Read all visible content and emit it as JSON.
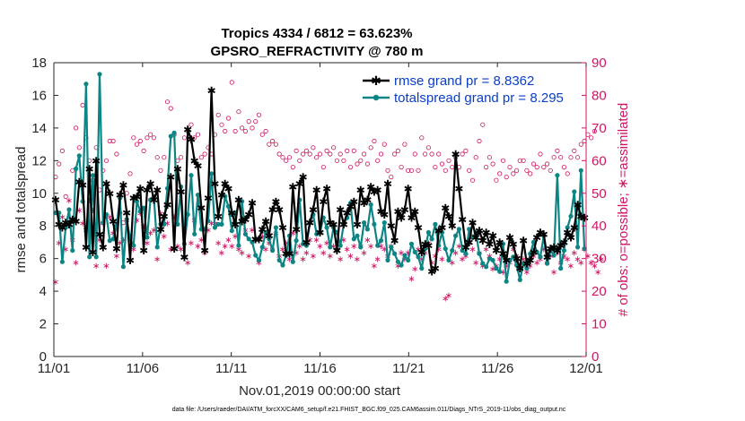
{
  "chart_data": {
    "type": "line",
    "title": "Tropics 4334 / 6812 = 63.623%",
    "subtitle": "GPSRO_REFRACTIVITY @ 780 m",
    "xlabel": "Nov.01,2019 00:00:00 start",
    "ylabel": "rmse and totalspread",
    "y2label": "# of obs: o=possible; ∗=assimilated",
    "footnote": "data file: /Users/raeder/DAI/ATM_forcXX/CAM6_setup/f.e21.FHIST_BGC.f09_025.CAM6assim.011/Diags_NTrS_2019-11/obs_diag_output.nc",
    "xlim": [
      0,
      30
    ],
    "ylim": [
      0,
      18
    ],
    "y2lim": [
      0,
      90
    ],
    "xticks": [
      0,
      5,
      10,
      15,
      20,
      25,
      30
    ],
    "xtick_labels": [
      "11/01",
      "11/06",
      "11/11",
      "11/16",
      "11/21",
      "11/26",
      "12/01"
    ],
    "yticks": [
      0,
      2,
      4,
      6,
      8,
      10,
      12,
      14,
      16,
      18
    ],
    "ytick_labels": [
      "0",
      "2",
      "4",
      "6",
      "8",
      "10",
      "12",
      "14",
      "16",
      "18"
    ],
    "y2ticks": [
      0,
      10,
      20,
      30,
      40,
      50,
      60,
      70,
      80,
      90
    ],
    "y2tick_labels": [
      "0",
      "10",
      "20",
      "30",
      "40",
      "50",
      "60",
      "70",
      "80",
      "90"
    ],
    "legend_position": "top-right",
    "colors": {
      "rmse": "#000000",
      "spread": "#0e8585",
      "obs": "#cc1663",
      "legend_text": "#0a3ec9",
      "axis": "#262626"
    },
    "series": [
      {
        "name": "rmse grand pr = 8.8362",
        "color": "#000000",
        "marker": "star",
        "values": [
          9.6,
          8.1,
          7.9,
          8.2,
          8.1,
          8.4,
          8.3,
          10.7,
          10.5,
          6.7,
          11.5,
          6.4,
          12.0,
          7.5,
          6.7,
          10.6,
          10.0,
          8.3,
          6.6,
          9.9,
          10.5,
          8.8,
          5.9,
          9.7,
          9.8,
          10.3,
          6.5,
          10.2,
          10.6,
          9.6,
          10.2,
          7.8,
          8.6,
          9.3,
          11.0,
          6.6,
          11.5,
          10.1,
          6.1,
          13.9,
          13.3,
          12.0,
          11.7,
          9.1,
          6.5,
          9.7,
          16.3,
          10.6,
          8.6,
          9.9,
          10.6,
          10.3,
          8.8,
          8.1,
          9.6,
          8.3,
          8.4,
          8.7,
          9.4,
          7.2,
          7.2,
          7.8,
          8.3,
          7.4,
          9.0,
          9.5,
          9.0,
          7.9,
          6.3,
          6.3,
          10.4,
          7.8,
          10.6,
          11.0,
          7.0,
          8.2,
          9.0,
          10.2,
          7.6,
          9.5,
          10.3,
          8.2,
          8.1,
          6.5,
          9.0,
          8.1,
          8.8,
          9.2,
          9.5,
          8.1,
          10.2,
          9.4,
          9.6,
          10.4,
          10.1,
          10.2,
          8.9,
          8.7,
          10.6,
          8.0,
          7.1,
          8.9,
          8.5,
          9.0,
          10.3,
          8.5,
          8.9,
          7.9,
          6.4,
          6.9,
          6.8,
          5.2,
          5.4,
          7.7,
          7.9,
          9.1,
          8.6,
          8.0,
          12.4,
          10.3,
          8.4,
          6.7,
          7.0,
          8.2,
          7.3,
          7.7,
          7.1,
          7.6,
          6.9,
          7.4,
          6.5,
          7.0,
          6.3,
          5.9,
          7.3,
          6.9,
          6.0,
          5.4,
          7.1,
          5.7,
          5.9,
          6.4,
          7.3,
          7.6,
          7.5,
          6.1,
          6.6,
          6.7,
          6.5,
          6.8,
          7.0,
          7.6,
          7.3,
          7.9,
          9.3,
          8.6,
          8.5
        ]
      },
      {
        "name": "totalspread grand pr = 8.295",
        "color": "#0e8585",
        "marker": "dot",
        "values": [
          8.8,
          8.8,
          5.8,
          7.9,
          9.0,
          6.5,
          11.5,
          12.3,
          9.5,
          16.7,
          6.1,
          11.1,
          6.1,
          17.3,
          8.2,
          8.7,
          7.1,
          7.2,
          8.0,
          9.7,
          5.5,
          8.4,
          7.2,
          6.8,
          9.5,
          8.9,
          9.1,
          7.3,
          9.6,
          9.8,
          6.7,
          8.1,
          8.1,
          10.3,
          13.5,
          13.7,
          8.1,
          10.4,
          6.9,
          8.7,
          11.1,
          7.5,
          9.9,
          7.8,
          7.8,
          8.3,
          11.2,
          7.9,
          8.1,
          8.1,
          9.8,
          9.2,
          7.7,
          8.8,
          6.8,
          9.5,
          7.5,
          7.2,
          7.0,
          6.2,
          5.9,
          6.7,
          7.6,
          7.2,
          6.5,
          7.9,
          5.9,
          5.6,
          6.2,
          7.4,
          5.8,
          7.1,
          9.6,
          6.9,
          6.8,
          8.2,
          8.7,
          7.5,
          7.6,
          8.5,
          7.9,
          6.7,
          7.9,
          7.6,
          6.8,
          8.1,
          8.5,
          9.4,
          7.2,
          7.4,
          6.7,
          8.2,
          7.8,
          9.3,
          8.1,
          6.8,
          7.1,
          8.2,
          5.9,
          6.7,
          6.3,
          5.8,
          5.6,
          6.2,
          5.9,
          6.9,
          6.4,
          6.1,
          5.4,
          6.6,
          7.6,
          7.2,
          8.1,
          6.8,
          7.6,
          6.6,
          5.9,
          6.5,
          7.4,
          7.8,
          6.5,
          6.3,
          7.8,
          7.3,
          7.6,
          6.3,
          5.7,
          5.5,
          6.0,
          5.9,
          5.4,
          5.2,
          6.9,
          4.6,
          5.9,
          6.1,
          5.6,
          4.7,
          5.7,
          5.4,
          6.3,
          7.0,
          6.4,
          6.1,
          7.4,
          5.7,
          6.5,
          6.2,
          11.1,
          5.4,
          6.5,
          7.9,
          8.6,
          10.1,
          6.7,
          11.4,
          6.6
        ]
      },
      {
        "name": "obs possible",
        "axis": "right",
        "color": "#cc1663",
        "marker": "circle",
        "values": [
          55,
          59,
          63,
          49,
          41,
          57,
          70,
          64,
          77,
          67,
          60,
          54,
          64,
          51,
          57,
          60,
          66,
          66,
          62,
          44,
          41,
          50,
          56,
          67,
          65,
          66,
          63,
          67,
          68,
          67,
          61,
          57,
          61,
          78,
          76,
          68,
          60,
          61,
          67,
          69,
          71,
          67,
          68,
          61,
          62,
          64,
          62,
          68,
          74,
          71,
          69,
          73,
          84,
          69,
          75,
          70,
          69,
          72,
          70,
          72,
          74,
          68,
          69,
          65,
          66,
          65,
          62,
          61,
          60,
          61,
          58,
          63,
          60,
          62,
          63,
          62,
          64,
          61,
          62,
          58,
          63,
          62,
          64,
          60,
          62,
          60,
          63,
          58,
          63,
          59,
          60,
          62,
          59,
          64,
          66,
          60,
          62,
          65,
          57,
          55,
          62,
          63,
          58,
          65,
          57,
          57,
          62,
          57,
          67,
          62,
          64,
          62,
          58,
          62,
          59,
          57,
          60,
          58,
          61,
          58,
          62,
          63,
          57,
          54,
          61,
          66,
          71,
          58,
          61,
          59,
          54,
          56,
          60,
          55,
          58,
          56,
          57,
          60,
          60,
          57,
          56,
          59,
          58,
          62,
          58,
          59,
          57,
          61,
          63,
          61,
          58,
          56,
          61,
          63,
          61,
          65,
          66,
          68,
          67,
          69
        ]
      },
      {
        "name": "obs assimilated",
        "axis": "right",
        "color": "#cc1663",
        "marker": "star",
        "values": [
          23,
          35,
          43,
          33,
          48,
          36,
          29,
          45,
          41,
          39,
          48,
          45,
          28,
          36,
          41,
          28,
          43,
          38,
          31,
          35,
          36,
          42,
          37,
          33,
          42,
          44,
          40,
          35,
          38,
          39,
          30,
          44,
          37,
          41,
          33,
          43,
          34,
          33,
          39,
          29,
          35,
          42,
          34,
          36,
          32,
          39,
          41,
          41,
          35,
          32,
          34,
          36,
          34,
          37,
          33,
          32,
          39,
          31,
          39,
          36,
          29,
          37,
          33,
          35,
          33,
          38,
          31,
          33,
          35,
          30,
          38,
          32,
          34,
          30,
          32,
          36,
          31,
          36,
          34,
          32,
          35,
          31,
          34,
          33,
          30,
          36,
          33,
          31,
          34,
          30,
          34,
          32,
          36,
          34,
          28,
          30,
          34,
          33,
          31,
          34,
          36,
          28,
          32,
          30,
          32,
          24,
          27,
          33,
          30,
          32,
          35,
          29,
          31,
          33,
          30,
          18,
          19,
          29,
          32,
          34,
          30,
          31,
          35,
          33,
          29,
          32,
          28,
          33,
          31,
          27,
          28,
          30,
          26,
          28,
          29,
          33,
          31,
          28,
          30,
          26,
          28,
          31,
          29,
          30,
          33,
          29,
          31,
          26,
          32,
          29,
          31,
          30,
          28,
          32,
          30,
          29,
          33,
          31,
          29,
          28,
          26,
          30
        ]
      }
    ],
    "legend": [
      "rmse grand pr = 8.8362",
      "totalspread grand pr = 8.295"
    ]
  }
}
